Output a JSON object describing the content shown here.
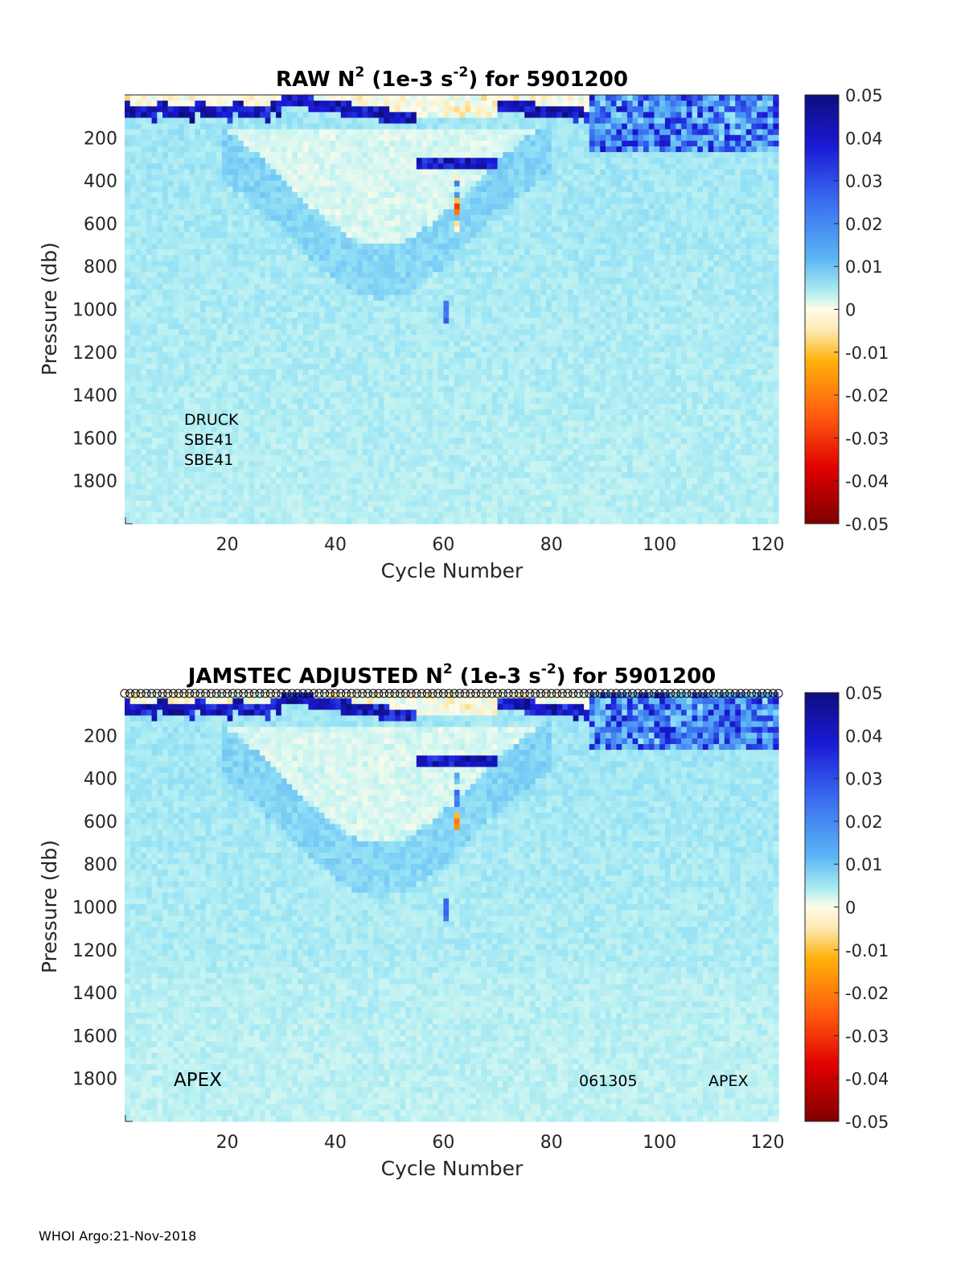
{
  "footer": "WHOI Argo:21-Nov-2018",
  "chart_data": [
    {
      "type": "heatmap",
      "title": {
        "pre": "RAW N",
        "sup1": "2",
        "mid": " (1e-3 s",
        "sup2": "-2",
        "post": ") for 5901200"
      },
      "xlabel": "Cycle Number",
      "ylabel": "Pressure (db)",
      "xlim": [
        1,
        122
      ],
      "ylim": [
        0,
        2000
      ],
      "y_reversed": true,
      "xticks": [
        20,
        40,
        60,
        80,
        100,
        120
      ],
      "yticks": [
        200,
        400,
        600,
        800,
        1000,
        1200,
        1400,
        1600,
        1800
      ],
      "colorbar": {
        "colormap": "jet-diverging",
        "limits": [
          -0.05,
          0.05
        ],
        "ticks": [
          0.05,
          0.04,
          0.03,
          0.02,
          0.01,
          0,
          -0.01,
          -0.02,
          -0.03,
          -0.04,
          -0.05
        ],
        "tick_labels": [
          "0.05",
          "0.04",
          "0.03",
          "0.02",
          "0.01",
          "0",
          "-0.01",
          "-0.02",
          "-0.03",
          "-0.04",
          "-0.05"
        ]
      },
      "annotations": [
        "DRUCK",
        "SBE41",
        "SBE41"
      ],
      "profile_markers": false,
      "grid": false
    },
    {
      "type": "heatmap",
      "title": {
        "pre": "JAMSTEC  ADJUSTED N",
        "sup1": "2",
        "mid": " (1e-3 s",
        "sup2": "-2",
        "post": ") for 5901200"
      },
      "xlabel": "Cycle Number",
      "ylabel": "Pressure (db)",
      "xlim": [
        1,
        122
      ],
      "ylim": [
        0,
        2000
      ],
      "y_reversed": true,
      "xticks": [
        20,
        40,
        60,
        80,
        100,
        120
      ],
      "yticks": [
        200,
        400,
        600,
        800,
        1000,
        1200,
        1400,
        1600,
        1800
      ],
      "colorbar": {
        "colormap": "jet-diverging",
        "limits": [
          -0.05,
          0.05
        ],
        "ticks": [
          0.05,
          0.04,
          0.03,
          0.02,
          0.01,
          0,
          -0.01,
          -0.02,
          -0.03,
          -0.04,
          -0.05
        ],
        "tick_labels": [
          "0.05",
          "0.04",
          "0.03",
          "0.02",
          "0.01",
          "0",
          "-0.01",
          "-0.02",
          "-0.03",
          "-0.04",
          "-0.05"
        ]
      },
      "annotations": [
        "APEX",
        "061305",
        "APEX"
      ],
      "profile_markers": true,
      "grid": false
    }
  ]
}
